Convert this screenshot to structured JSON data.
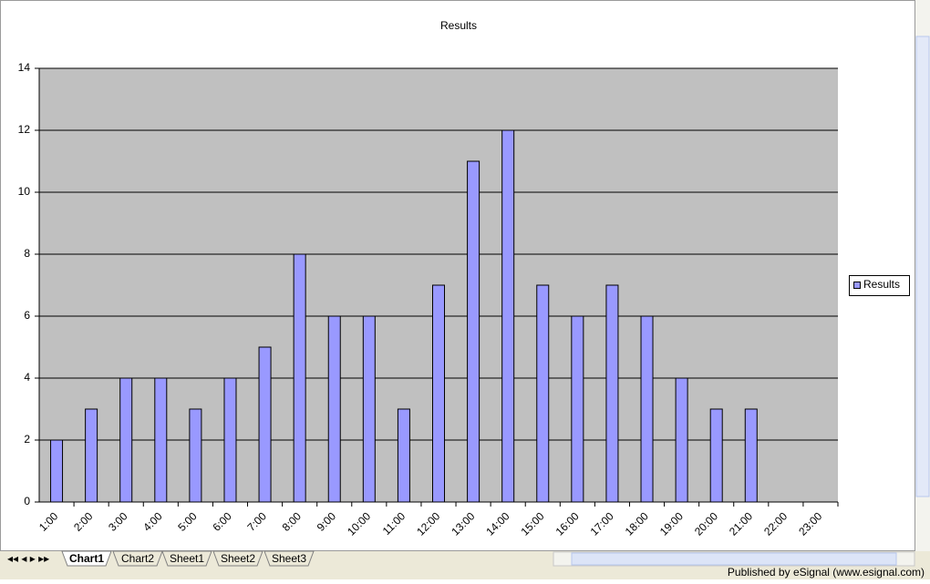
{
  "chart_data": {
    "type": "bar",
    "title": "Results",
    "categories": [
      "1:00",
      "2:00",
      "3:00",
      "4:00",
      "5:00",
      "6:00",
      "7:00",
      "8:00",
      "9:00",
      "10:00",
      "11:00",
      "12:00",
      "13:00",
      "14:00",
      "15:00",
      "16:00",
      "17:00",
      "18:00",
      "19:00",
      "20:00",
      "21:00",
      "22:00",
      "23:00"
    ],
    "series": [
      {
        "name": "Results",
        "color": "#9999ff",
        "values": [
          2,
          3,
          4,
          4,
          3,
          4,
          5,
          8,
          6,
          6,
          3,
          7,
          11,
          12,
          7,
          6,
          7,
          6,
          4,
          3,
          3,
          0,
          0
        ]
      }
    ],
    "ylim": [
      0,
      14
    ],
    "yticks": [
      0,
      2,
      4,
      6,
      8,
      10,
      12,
      14
    ],
    "grid": true,
    "legend": "right"
  },
  "tabs": [
    "Chart1",
    "Chart2",
    "Sheet1",
    "Sheet2",
    "Sheet3"
  ],
  "status": "Published by eSignal (www.esignal.com)"
}
